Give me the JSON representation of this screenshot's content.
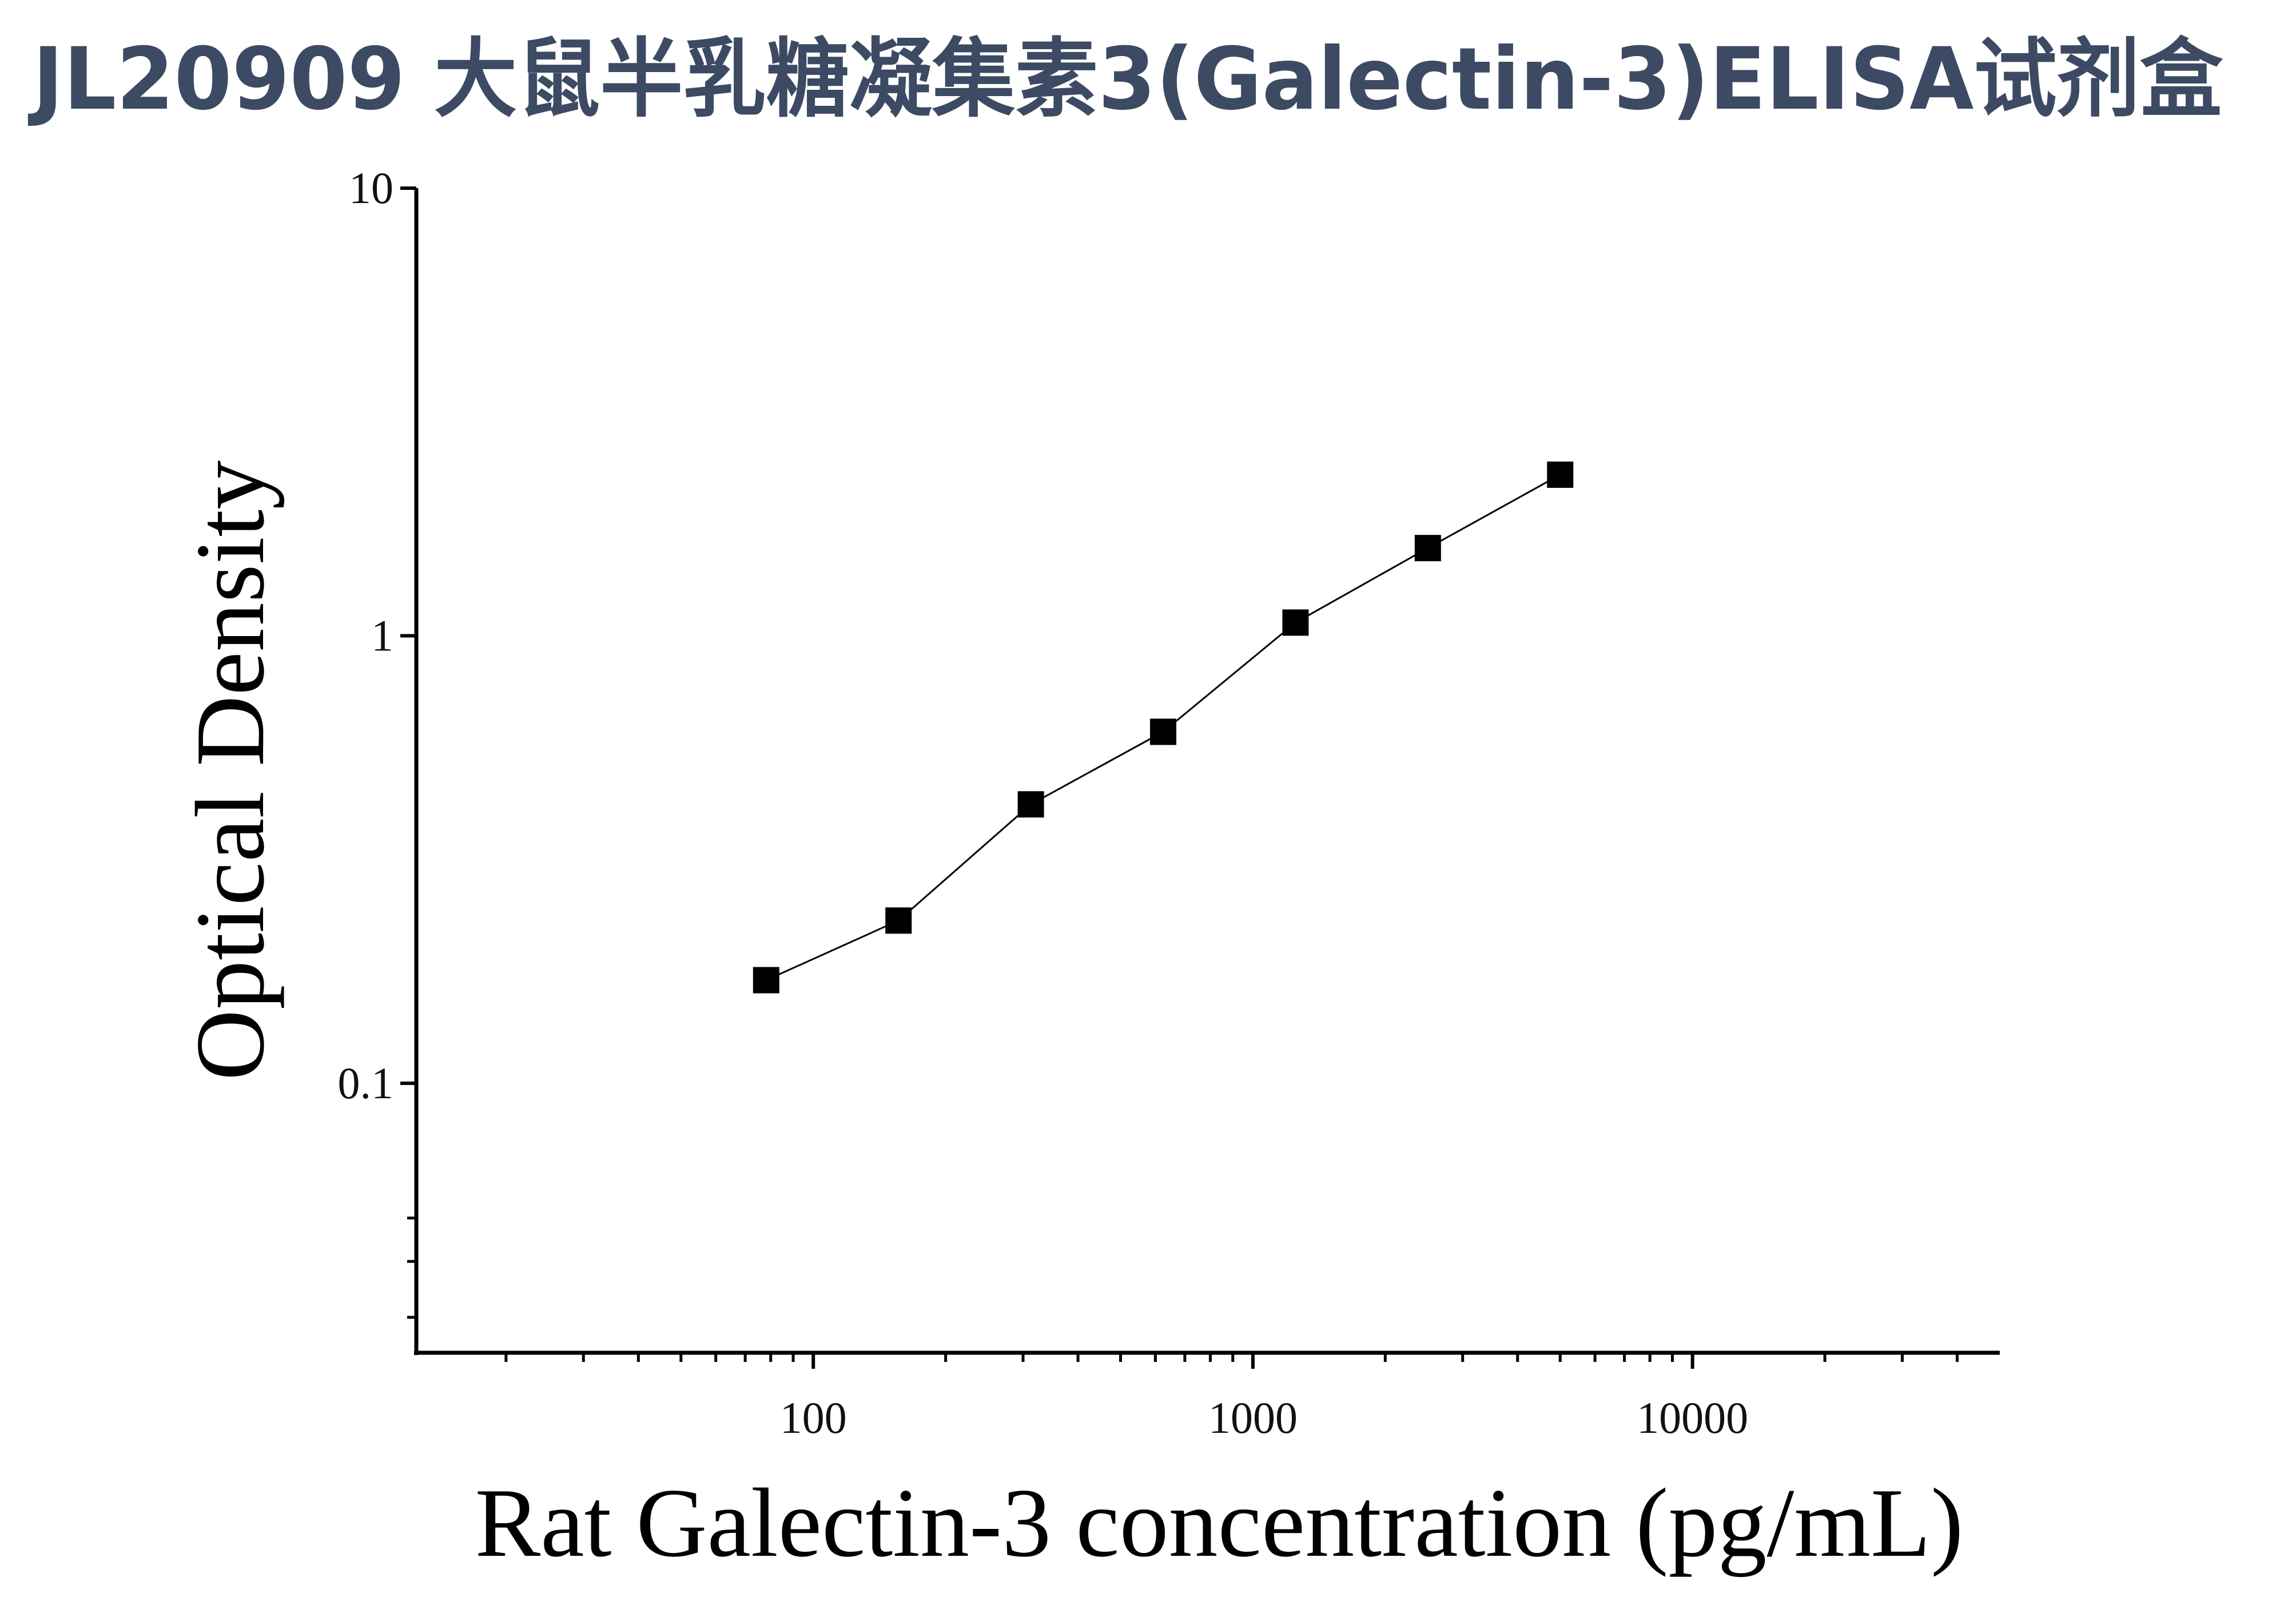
{
  "chart_data": {
    "type": "scatter",
    "title": "JL20909 大鼠半乳糖凝集素3(Galectin-3)ELISA试剂盒",
    "x_label": "Rat Galectin-3 concentration (pg/mL)",
    "y_label": "Optical Density",
    "x": [
      78.125,
      156.25,
      312.5,
      625,
      1250,
      2500,
      5000
    ],
    "series": [
      {
        "color": "#000000",
        "values": [
          0.17,
          0.231,
          0.42,
          0.61,
          1.07,
          1.57,
          2.29
        ]
      }
    ],
    "connect_points": true,
    "xlog": true,
    "ylog": true,
    "xlim": [
      12.5,
      50000
    ],
    "ylim": [
      0.025,
      10
    ],
    "xticks": [
      100,
      1000,
      10000
    ],
    "yticks": [
      0.1,
      1,
      10
    ],
    "xminorticks": [
      20,
      30,
      40,
      50,
      60,
      70,
      80,
      90,
      200,
      300,
      400,
      500,
      600,
      700,
      800,
      900,
      2000,
      3000,
      4000,
      5000,
      6000,
      7000,
      8000,
      9000,
      20000,
      30000,
      40000
    ],
    "yminorticks": [
      0.03,
      0.04,
      0.05
    ]
  }
}
